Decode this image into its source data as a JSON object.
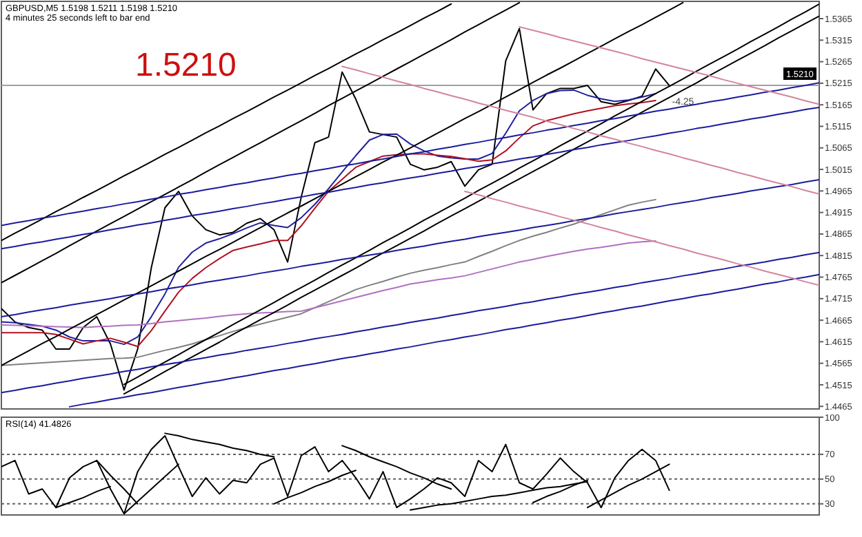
{
  "chart_data": [
    {
      "type": "line",
      "title": "GBPUSD,M5  1.5198 1.5211 1.5198 1.5210",
      "subtitle": "4 minutes 25 seconds left to bar end",
      "categories": [
        null,
        null,
        null,
        null,
        null,
        null,
        null,
        null,
        null,
        null,
        null,
        null,
        null,
        null,
        null,
        null,
        null,
        null,
        null,
        null,
        null,
        null,
        null,
        null,
        null,
        null,
        null,
        null,
        null,
        null,
        null,
        null,
        null,
        null,
        null,
        null,
        null,
        null,
        null,
        null,
        null,
        null,
        null,
        null,
        null,
        null,
        null,
        null,
        null,
        null,
        null,
        null,
        null,
        null,
        null,
        null,
        null,
        null,
        null,
        null,
        null
      ],
      "ylim": [
        1.4459,
        1.5405
      ],
      "yticks": [
        1.4465,
        1.4515,
        1.4565,
        1.4615,
        1.4665,
        1.4715,
        1.4765,
        1.4815,
        1.4865,
        1.4915,
        1.4965,
        1.5015,
        1.5065,
        1.5115,
        1.5165,
        1.5215,
        1.5265,
        1.5315,
        1.5365
      ],
      "tick_labels": "y",
      "annotations": [
        "1.5210",
        "-4.25"
      ],
      "ref_lines": [
        {
          "axis": "y",
          "value": 1.521,
          "label": "1.5210",
          "color": "#a0a0a0"
        }
      ],
      "series": [
        {
          "color": "#000000",
          "values": [
            1.4692,
            1.4661,
            1.4648,
            1.4642,
            1.4598,
            1.4598,
            1.4648,
            1.4673,
            1.461,
            1.4503,
            1.4598,
            1.4787,
            1.4926,
            1.4964,
            1.4907,
            1.4875,
            1.4863,
            1.4869,
            1.489,
            1.4901,
            1.4875,
            1.48,
            1.4951,
            1.5077,
            1.509,
            1.5241,
            1.5178,
            1.5102,
            1.5096,
            1.509,
            1.5027,
            1.5014,
            1.502,
            1.5033,
            1.4976,
            1.5014,
            1.5027,
            1.5267,
            1.5342,
            1.5153,
            1.5191,
            1.5203,
            1.5203,
            1.521,
            1.5172,
            1.5166,
            1.5175,
            1.5185,
            1.5248,
            1.521,
            null,
            null,
            null,
            null,
            null,
            null,
            null,
            null,
            null,
            null,
            null
          ]
        },
        {
          "color": "#20209c",
          "values": [
            1.4661,
            1.4659,
            1.4655,
            1.4651,
            1.4642,
            1.4626,
            1.4617,
            1.4617,
            1.4617,
            1.4609,
            1.4626,
            1.4673,
            1.4726,
            1.4788,
            1.4823,
            1.4844,
            1.4854,
            1.4866,
            1.4879,
            1.4891,
            1.4885,
            1.488,
            1.4903,
            1.4934,
            1.497,
            1.5009,
            1.5047,
            1.5083,
            1.5096,
            1.5097,
            1.5074,
            1.5058,
            1.5046,
            1.5042,
            1.5039,
            1.5039,
            1.5052,
            1.5099,
            1.5151,
            1.5175,
            1.5191,
            1.5198,
            1.5199,
            1.5187,
            1.5179,
            1.5173,
            1.5176,
            1.5183,
            1.5191,
            null,
            null,
            null,
            null,
            null,
            null,
            null,
            null,
            null,
            null,
            null,
            null
          ]
        },
        {
          "color": "#b01020",
          "values": [
            1.4636,
            1.4636,
            1.4636,
            1.4636,
            1.4632,
            1.4621,
            1.461,
            1.4617,
            1.4623,
            1.4614,
            1.4604,
            1.4641,
            1.4686,
            1.473,
            1.4762,
            1.4787,
            1.4808,
            1.4827,
            1.4835,
            1.4842,
            1.485,
            1.485,
            1.4884,
            1.4925,
            1.4964,
            1.4992,
            1.502,
            1.5033,
            1.5046,
            1.5049,
            1.5051,
            1.5051,
            1.5048,
            1.5045,
            1.504,
            1.5034,
            1.5037,
            1.5058,
            1.5088,
            1.5116,
            1.5128,
            1.5136,
            1.5144,
            1.5151,
            1.5157,
            1.5163,
            1.5167,
            1.517,
            1.5175,
            null,
            null,
            null,
            null,
            null,
            null,
            null,
            null,
            null,
            null,
            null,
            null
          ]
        },
        {
          "color": "#808080",
          "values": [
            1.456,
            1.4562,
            1.4564,
            1.4566,
            1.4568,
            1.457,
            1.4572,
            1.4574,
            1.4576,
            1.4577,
            1.4579,
            1.4587,
            1.4595,
            1.4602,
            1.461,
            1.462,
            1.4629,
            1.4639,
            1.4648,
            1.4656,
            1.4664,
            1.4672,
            1.468,
            1.4694,
            1.4708,
            1.4722,
            1.4736,
            1.4746,
            1.4755,
            1.4765,
            1.4774,
            1.4781,
            1.4787,
            1.4794,
            1.48,
            1.4813,
            1.4825,
            1.4838,
            1.485,
            1.486,
            1.4869,
            1.4879,
            1.4888,
            1.4899,
            1.491,
            1.4921,
            1.4932,
            1.4939,
            1.4945,
            null,
            null,
            null,
            null,
            null,
            null,
            null,
            null,
            null,
            null,
            null,
            null
          ]
        },
        {
          "color": "#b070c0",
          "values": [
            1.4654,
            1.4653,
            1.4652,
            1.4651,
            1.465,
            1.4649,
            1.4648,
            1.465,
            1.4651,
            1.4653,
            1.4654,
            1.4657,
            1.4661,
            1.4664,
            1.4667,
            1.467,
            1.4674,
            1.4677,
            1.468,
            1.4682,
            1.4683,
            1.4685,
            1.4686,
            1.4694,
            1.4702,
            1.471,
            1.4718,
            1.4726,
            1.4734,
            1.4741,
            1.4749,
            1.4754,
            1.4759,
            1.4763,
            1.4768,
            1.4776,
            1.4784,
            1.4792,
            1.48,
            1.4806,
            1.4813,
            1.4819,
            1.4825,
            1.483,
            1.4834,
            1.4839,
            1.4844,
            1.4847,
            1.4849,
            null,
            null,
            null,
            null,
            null,
            null,
            null,
            null,
            null,
            null,
            null,
            null
          ]
        },
        {
          "color": "#000000",
          "values": [
            1.485,
            1.4867,
            1.4883,
            1.49,
            1.4917,
            1.4933,
            1.495,
            1.4966,
            1.4983,
            1.5,
            1.5016,
            1.5033,
            1.505,
            1.5066,
            1.5083,
            1.51,
            1.5116,
            1.5133,
            1.5149,
            1.5166,
            1.5183,
            1.5199,
            1.5216,
            1.5233,
            1.5249,
            1.5266,
            1.5283,
            1.5299,
            1.5316,
            1.5332,
            1.5349,
            1.5366,
            1.5382,
            1.5399,
            null,
            null,
            null,
            null,
            null,
            null,
            null,
            null,
            null,
            null,
            null,
            null,
            null,
            null,
            null,
            null,
            null,
            null,
            null,
            null,
            null,
            null,
            null,
            null,
            null,
            null,
            null
          ]
        },
        {
          "color": "#000000",
          "values": [
            1.4752,
            1.4769,
            1.4786,
            1.4803,
            1.482,
            1.4838,
            1.4855,
            1.4872,
            1.4889,
            1.4906,
            1.4923,
            1.494,
            1.4957,
            1.4974,
            1.4991,
            1.5009,
            1.5026,
            1.5043,
            1.506,
            1.5077,
            1.5094,
            1.5111,
            1.5128,
            1.5145,
            1.5163,
            1.518,
            1.5197,
            1.5214,
            1.5231,
            1.5248,
            1.5265,
            1.5282,
            1.5299,
            1.5316,
            1.5334,
            1.5351,
            1.5368,
            1.5385,
            1.5402,
            null,
            null,
            null,
            null,
            null,
            null,
            null,
            null,
            null,
            null,
            null,
            null,
            null,
            null,
            null,
            null,
            null,
            null,
            null,
            null,
            null,
            null
          ]
        },
        {
          "color": "#000000",
          "values": [
            1.456,
            1.4577,
            1.4594,
            1.4611,
            1.4627,
            1.4644,
            1.4661,
            1.4678,
            1.4695,
            1.4712,
            1.4728,
            1.4745,
            1.4762,
            1.4779,
            1.4796,
            1.4813,
            1.4829,
            1.4846,
            1.4863,
            1.488,
            1.4897,
            1.4914,
            1.493,
            1.4947,
            1.4964,
            1.4981,
            1.4998,
            1.5015,
            1.5032,
            1.5048,
            1.5065,
            1.5082,
            1.5099,
            1.5116,
            1.5133,
            1.5149,
            1.5166,
            1.5183,
            1.52,
            1.5217,
            1.5234,
            1.525,
            1.5267,
            1.5284,
            1.5301,
            1.5318,
            1.5335,
            1.5351,
            1.5368,
            1.5385,
            1.5402,
            null,
            null,
            null,
            null,
            null,
            null,
            null,
            null,
            null,
            null
          ]
        },
        {
          "color": "#000000",
          "values": [
            null,
            null,
            null,
            null,
            null,
            null,
            null,
            null,
            null,
            1.4516,
            1.4533,
            1.4551,
            1.4568,
            1.4585,
            1.4603,
            1.462,
            1.4637,
            1.4655,
            1.4672,
            1.4689,
            1.4706,
            1.4724,
            1.4741,
            1.4758,
            1.4776,
            1.4793,
            1.481,
            1.4827,
            1.4845,
            1.4862,
            1.4879,
            1.4897,
            1.4914,
            1.4931,
            1.4948,
            1.4966,
            1.4983,
            1.5,
            1.5018,
            1.5035,
            1.5052,
            1.507,
            1.5087,
            1.5104,
            1.5121,
            1.5139,
            1.5156,
            1.5173,
            1.5191,
            1.5208,
            1.5225,
            1.5243,
            1.526,
            1.5277,
            1.5294,
            1.5312,
            1.5329,
            1.5346,
            1.5364,
            1.5381,
            1.5399
          ]
        },
        {
          "color": "#000000",
          "values": [
            null,
            null,
            null,
            null,
            null,
            null,
            null,
            null,
            null,
            1.4494,
            1.4511,
            1.4528,
            1.4546,
            1.4563,
            1.458,
            1.4597,
            1.4614,
            1.4632,
            1.4649,
            1.4666,
            1.4683,
            1.47,
            1.4718,
            1.4735,
            1.4752,
            1.4769,
            1.4786,
            1.4804,
            1.4821,
            1.4838,
            1.4855,
            1.4872,
            1.489,
            1.4907,
            1.4924,
            1.4941,
            1.4958,
            1.4976,
            1.4993,
            1.501,
            1.5027,
            1.5044,
            1.5062,
            1.5079,
            1.5096,
            1.5113,
            1.513,
            1.5148,
            1.5165,
            1.5182,
            1.5199,
            1.5216,
            1.5234,
            1.5251,
            1.5268,
            1.5285,
            1.5302,
            1.532,
            1.5337,
            1.5354,
            1.5371
          ]
        },
        {
          "color": "#1a1a9c",
          "values": [
            1.4885,
            1.4891,
            1.4896,
            1.4902,
            1.4907,
            1.4913,
            1.4918,
            1.4924,
            1.4929,
            1.4935,
            1.494,
            1.4946,
            1.4951,
            1.4957,
            1.4962,
            1.4968,
            1.4973,
            1.4979,
            1.4984,
            1.499,
            1.4995,
            1.5001,
            1.5006,
            1.5012,
            1.5017,
            1.5023,
            1.5028,
            1.5034,
            1.5039,
            1.5045,
            1.5051,
            1.5056,
            1.5062,
            1.5067,
            1.5073,
            1.5078,
            1.5084,
            1.5089,
            1.5095,
            1.51,
            1.5106,
            1.5111,
            1.5117,
            1.5122,
            1.5128,
            1.5133,
            1.5139,
            1.5144,
            1.515,
            1.5155,
            1.5161,
            1.5166,
            1.5172,
            1.5177,
            1.5183,
            1.5188,
            1.5194,
            1.5199,
            1.5205,
            1.521,
            1.5216
          ]
        },
        {
          "color": "#1a1a9c",
          "values": [
            1.4831,
            1.4836,
            1.4842,
            1.4847,
            1.4853,
            1.4858,
            1.4864,
            1.4869,
            1.4875,
            1.488,
            1.4886,
            1.4891,
            1.4897,
            1.4902,
            1.4908,
            1.4913,
            1.4918,
            1.4924,
            1.4929,
            1.4935,
            1.494,
            1.4946,
            1.4951,
            1.4957,
            1.4962,
            1.4968,
            1.4973,
            1.4979,
            1.4984,
            1.499,
            1.4995,
            1.5,
            1.5006,
            1.5011,
            1.5017,
            1.5022,
            1.5028,
            1.5033,
            1.5039,
            1.5044,
            1.505,
            1.5055,
            1.5061,
            1.5066,
            1.5072,
            1.5077,
            1.5082,
            1.5088,
            1.5093,
            1.5099,
            1.5104,
            1.511,
            1.5115,
            1.5121,
            1.5126,
            1.5132,
            1.5137,
            1.5143,
            1.5148,
            1.5154,
            1.5159
          ]
        },
        {
          "color": "#1a1a9c",
          "values": [
            1.4673,
            1.4678,
            1.4684,
            1.4689,
            1.4694,
            1.47,
            1.4705,
            1.471,
            1.4715,
            1.4721,
            1.4726,
            1.4731,
            1.4737,
            1.4742,
            1.4747,
            1.4753,
            1.4758,
            1.4763,
            1.4768,
            1.4774,
            1.4779,
            1.4784,
            1.479,
            1.4795,
            1.48,
            1.4806,
            1.4811,
            1.4816,
            1.4821,
            1.4827,
            1.4832,
            1.4837,
            1.4843,
            1.4848,
            1.4853,
            1.4859,
            1.4864,
            1.4869,
            1.4874,
            1.488,
            1.4885,
            1.489,
            1.4896,
            1.4901,
            1.4906,
            1.4912,
            1.4917,
            1.4922,
            1.4927,
            1.4933,
            1.4938,
            1.4943,
            1.4949,
            1.4954,
            1.4959,
            1.4965,
            1.497,
            1.4975,
            1.498,
            1.4986,
            1.4991
          ]
        },
        {
          "color": "#1a1a9c",
          "values": [
            1.4497,
            1.4502,
            1.4508,
            1.4513,
            1.4519,
            1.4524,
            1.453,
            1.4535,
            1.454,
            1.4546,
            1.4551,
            1.4557,
            1.4562,
            1.4567,
            1.4573,
            1.4578,
            1.4584,
            1.4589,
            1.4595,
            1.46,
            1.4605,
            1.4611,
            1.4616,
            1.4622,
            1.4627,
            1.4632,
            1.4638,
            1.4643,
            1.4649,
            1.4654,
            1.466,
            1.4665,
            1.467,
            1.4676,
            1.4681,
            1.4687,
            1.4692,
            1.4697,
            1.4703,
            1.4708,
            1.4714,
            1.4719,
            1.4725,
            1.473,
            1.4735,
            1.4741,
            1.4746,
            1.4752,
            1.4757,
            1.4762,
            1.4768,
            1.4773,
            1.4779,
            1.4784,
            1.479,
            1.4795,
            1.48,
            1.4806,
            1.4811,
            1.4817,
            1.4822
          ]
        },
        {
          "color": "#1a1a9c",
          "values": [
            null,
            null,
            null,
            null,
            null,
            1.4464,
            1.447,
            1.4475,
            1.4481,
            1.4486,
            1.4492,
            1.4497,
            1.4503,
            1.4509,
            1.4514,
            1.452,
            1.4525,
            1.4531,
            1.4536,
            1.4542,
            1.4548,
            1.4553,
            1.4559,
            1.4564,
            1.457,
            1.4576,
            1.4581,
            1.4587,
            1.4592,
            1.4598,
            1.4603,
            1.4609,
            1.4615,
            1.462,
            1.4626,
            1.4631,
            1.4637,
            1.4643,
            1.4648,
            1.4654,
            1.4659,
            1.4665,
            1.467,
            1.4676,
            1.4682,
            1.4687,
            1.4693,
            1.4698,
            1.4704,
            1.471,
            1.4715,
            1.4721,
            1.4726,
            1.4732,
            1.4737,
            1.4743,
            1.4749,
            1.4754,
            1.476,
            1.4765,
            1.4771
          ]
        },
        {
          "color": "#d4849a",
          "values": [
            null,
            null,
            null,
            null,
            null,
            null,
            null,
            null,
            null,
            null,
            null,
            null,
            null,
            null,
            null,
            null,
            null,
            null,
            null,
            null,
            null,
            null,
            null,
            null,
            null,
            null,
            null,
            null,
            null,
            null,
            null,
            null,
            null,
            null,
            null,
            null,
            null,
            null,
            1.5346,
            1.5338,
            1.533,
            1.5321,
            1.5313,
            1.5305,
            1.5297,
            1.5289,
            1.5281,
            1.5272,
            1.5264,
            1.5256,
            1.5248,
            1.524,
            1.5232,
            1.5223,
            1.5215,
            1.5207,
            1.5199,
            1.5191,
            1.5183,
            1.5174,
            1.5166
          ]
        },
        {
          "color": "#d4849a",
          "values": [
            null,
            null,
            null,
            null,
            null,
            null,
            null,
            null,
            null,
            null,
            null,
            null,
            null,
            null,
            null,
            null,
            null,
            null,
            null,
            null,
            null,
            null,
            null,
            null,
            null,
            1.5254,
            1.5246,
            1.5237,
            1.5229,
            1.522,
            1.5212,
            1.5203,
            1.5195,
            1.5186,
            1.5178,
            1.5169,
            1.5161,
            1.5152,
            1.5144,
            1.5136,
            1.5127,
            1.5119,
            1.511,
            1.5102,
            1.5093,
            1.5085,
            1.5076,
            1.5068,
            1.5059,
            1.5051,
            1.5042,
            1.5034,
            1.5025,
            1.5017,
            1.5008,
            1.5,
            1.4991,
            1.4983,
            1.4975,
            1.4966,
            1.4958
          ]
        },
        {
          "color": "#d4849a",
          "values": [
            null,
            null,
            null,
            null,
            null,
            null,
            null,
            null,
            null,
            null,
            null,
            null,
            null,
            null,
            null,
            null,
            null,
            null,
            null,
            null,
            null,
            null,
            null,
            null,
            null,
            null,
            null,
            null,
            null,
            null,
            null,
            null,
            null,
            null,
            1.4964,
            1.4956,
            1.4947,
            1.4939,
            1.493,
            1.4922,
            1.4914,
            1.4905,
            1.4897,
            1.4889,
            1.488,
            1.4872,
            1.4863,
            1.4855,
            1.4847,
            1.4838,
            1.483,
            1.4821,
            1.4813,
            1.4805,
            1.4796,
            1.4788,
            1.4779,
            1.4771,
            1.4763,
            1.4754,
            1.4746
          ]
        }
      ]
    },
    {
      "type": "line",
      "title": "RSI(14) 41.4826",
      "categories": [
        null,
        null,
        null,
        null,
        null,
        null,
        null,
        null,
        null,
        null,
        null,
        null,
        null,
        null,
        null,
        null,
        null,
        null,
        null,
        null,
        null,
        null,
        null,
        null,
        null,
        null,
        null,
        null,
        null,
        null,
        null,
        null,
        null,
        null,
        null,
        null,
        null,
        null,
        null,
        null,
        null,
        null,
        null,
        null,
        null,
        null,
        null,
        null,
        null,
        null,
        null,
        null,
        null,
        null,
        null,
        null,
        null,
        null,
        null,
        null,
        null
      ],
      "ylim": [
        21,
        100
      ],
      "yticks": [
        100,
        70,
        50,
        30
      ],
      "tick_labels": "y",
      "ref_lines": [
        {
          "axis": "y",
          "value": 70,
          "color": "#606060",
          "line_style": "dotted"
        },
        {
          "axis": "y",
          "value": 50,
          "color": "#606060",
          "line_style": "dotted"
        },
        {
          "axis": "y",
          "value": 30,
          "color": "#606060",
          "line_style": "dotted"
        }
      ],
      "series": [
        {
          "color": "#000000",
          "values": [
            60,
            65,
            38,
            42,
            27,
            51,
            60,
            65,
            42,
            22,
            56,
            74,
            85,
            60,
            36,
            51,
            38,
            49,
            47,
            62,
            67,
            36,
            69,
            76,
            56,
            65,
            51,
            34,
            56,
            27,
            34,
            42,
            51,
            47,
            36,
            65,
            56,
            78,
            47,
            42,
            54,
            67,
            56,
            47,
            27,
            51,
            65,
            74,
            65,
            41,
            null,
            null,
            null,
            null,
            null,
            null,
            null,
            null,
            null,
            null,
            null
          ]
        },
        {
          "color": "#000000",
          "values": [
            null,
            null,
            null,
            null,
            null,
            null,
            null,
            null,
            null,
            null,
            null,
            null,
            87,
            85,
            82,
            80,
            78,
            75,
            73,
            70,
            68,
            null,
            null,
            null,
            null,
            null,
            null,
            null,
            null,
            null,
            null,
            null,
            null,
            null,
            null,
            null,
            null,
            null,
            null,
            null,
            null,
            null,
            null,
            null,
            null,
            null,
            null,
            null,
            null,
            null,
            null,
            null,
            null,
            null,
            null,
            null,
            null,
            null,
            null,
            null,
            null
          ]
        },
        {
          "color": "#000000",
          "values": [
            null,
            null,
            null,
            null,
            27,
            31,
            35,
            40,
            44,
            null,
            null,
            null,
            null,
            null,
            null,
            null,
            null,
            null,
            null,
            null,
            null,
            null,
            null,
            null,
            null,
            null,
            null,
            null,
            null,
            null,
            null,
            null,
            null,
            null,
            null,
            null,
            null,
            null,
            null,
            null,
            null,
            null,
            null,
            null,
            null,
            null,
            null,
            null,
            null,
            null,
            null,
            null,
            null,
            null,
            null,
            null,
            null,
            null,
            null,
            null,
            null
          ]
        },
        {
          "color": "#000000",
          "values": [
            null,
            null,
            null,
            null,
            null,
            null,
            null,
            65,
            53,
            42,
            30,
            null,
            null,
            null,
            null,
            null,
            null,
            null,
            null,
            null,
            null,
            null,
            null,
            null,
            null,
            null,
            null,
            null,
            null,
            null,
            null,
            null,
            null,
            null,
            null,
            null,
            null,
            null,
            null,
            null,
            null,
            null,
            null,
            null,
            null,
            null,
            null,
            null,
            null,
            null,
            null,
            null,
            null,
            null,
            null,
            null,
            null,
            null,
            null,
            null,
            null
          ]
        },
        {
          "color": "#000000",
          "values": [
            null,
            null,
            null,
            null,
            null,
            null,
            null,
            null,
            null,
            22,
            32,
            42,
            52,
            62,
            null,
            null,
            null,
            null,
            null,
            null,
            null,
            null,
            null,
            null,
            null,
            null,
            null,
            null,
            null,
            null,
            null,
            null,
            null,
            null,
            null,
            null,
            null,
            null,
            null,
            null,
            null,
            null,
            null,
            null,
            null,
            null,
            null,
            null,
            null,
            null,
            null,
            null,
            null,
            null,
            null,
            null,
            null,
            null,
            null,
            null,
            null
          ]
        },
        {
          "color": "#000000",
          "values": [
            null,
            null,
            null,
            null,
            null,
            null,
            null,
            null,
            null,
            null,
            null,
            null,
            null,
            null,
            null,
            null,
            null,
            null,
            null,
            null,
            30,
            35,
            39,
            44,
            48,
            53,
            57,
            null,
            null,
            null,
            null,
            null,
            null,
            null,
            null,
            null,
            null,
            null,
            null,
            null,
            null,
            null,
            null,
            null,
            null,
            null,
            null,
            null,
            null,
            null,
            null,
            null,
            null,
            null,
            null,
            null,
            null,
            null,
            null,
            null,
            null
          ]
        },
        {
          "color": "#000000",
          "values": [
            null,
            null,
            null,
            null,
            null,
            null,
            null,
            null,
            null,
            null,
            null,
            null,
            null,
            null,
            null,
            null,
            null,
            null,
            null,
            null,
            null,
            null,
            null,
            null,
            null,
            77,
            73,
            68,
            64,
            60,
            55,
            51,
            46,
            42,
            null,
            null,
            null,
            null,
            null,
            null,
            null,
            null,
            null,
            null,
            null,
            null,
            null,
            null,
            null,
            null,
            null,
            null,
            null,
            null,
            null,
            null,
            null,
            null,
            null,
            null,
            null
          ]
        },
        {
          "color": "#000000",
          "values": [
            null,
            null,
            null,
            null,
            null,
            null,
            null,
            null,
            null,
            null,
            null,
            null,
            null,
            null,
            null,
            null,
            null,
            null,
            null,
            null,
            null,
            null,
            null,
            null,
            null,
            null,
            null,
            null,
            null,
            null,
            25,
            27,
            29,
            30,
            32,
            34,
            36,
            37,
            39,
            41,
            43,
            44,
            46,
            48,
            null,
            null,
            null,
            null,
            null,
            null,
            null,
            null,
            null,
            null,
            null,
            null,
            null,
            null,
            null,
            null,
            null
          ]
        },
        {
          "color": "#000000",
          "values": [
            null,
            null,
            null,
            null,
            null,
            null,
            null,
            null,
            null,
            null,
            null,
            null,
            null,
            null,
            null,
            null,
            null,
            null,
            null,
            null,
            null,
            null,
            null,
            null,
            null,
            null,
            null,
            null,
            null,
            null,
            null,
            null,
            null,
            null,
            null,
            null,
            null,
            null,
            null,
            31,
            36,
            40,
            45,
            49,
            null,
            null,
            null,
            null,
            null,
            null,
            null,
            null,
            null,
            null,
            null,
            null,
            null,
            null,
            null,
            null,
            null
          ]
        },
        {
          "color": "#000000",
          "values": [
            null,
            null,
            null,
            null,
            null,
            null,
            null,
            null,
            null,
            null,
            null,
            null,
            null,
            null,
            null,
            null,
            null,
            null,
            null,
            null,
            null,
            null,
            null,
            null,
            null,
            null,
            null,
            null,
            null,
            null,
            null,
            null,
            null,
            null,
            null,
            null,
            null,
            null,
            null,
            null,
            null,
            null,
            null,
            27,
            33,
            39,
            45,
            50,
            56,
            62,
            null,
            null,
            null,
            null,
            null,
            null,
            null,
            null,
            null,
            null,
            null
          ]
        }
      ]
    }
  ]
}
